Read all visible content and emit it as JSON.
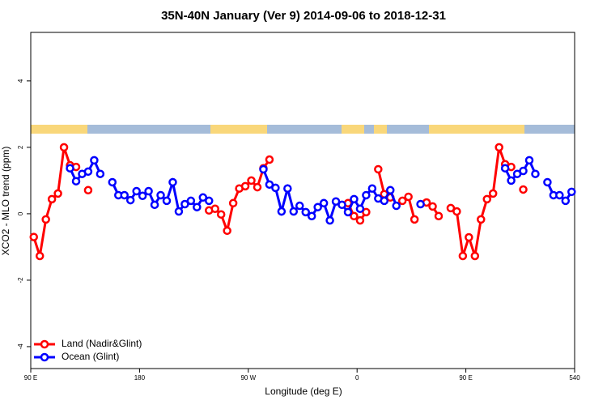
{
  "chart_data": {
    "type": "line",
    "title": "35N-40N January (Ver 9)   2014-09-06 to 2018-12-31",
    "xlabel": "Longitude (deg E)",
    "ylabel": "XCO2 - MLO trend (ppm)",
    "xlim": [
      90,
      540
    ],
    "ylim": [
      -4.66,
      5.46
    ],
    "xticks": [
      {
        "value": 90,
        "label": "90 E"
      },
      180,
      {
        "value": 270,
        "label": "90 W"
      },
      {
        "value": 360,
        "label": "0"
      },
      {
        "value": 450,
        "label": "90 E"
      },
      540
    ],
    "yticks": [
      -4,
      -2,
      0,
      2,
      4
    ],
    "legend": "bottomleft",
    "x": [
      92.5,
      97.5,
      102.5,
      107.5,
      112.5,
      117.5,
      122.5,
      127.5,
      132.5,
      137.5,
      142.5,
      147.5,
      152.5,
      157.5,
      162.5,
      167.5,
      172.5,
      177.5,
      182.5,
      187.5,
      192.5,
      197.5,
      202.5,
      207.5,
      212.5,
      217.5,
      222.5,
      227.5,
      232.5,
      237.5,
      242.5,
      247.5,
      252.5,
      257.5,
      262.5,
      267.5,
      272.5,
      277.5,
      282.5,
      287.5,
      292.5,
      297.5,
      302.5,
      307.5,
      312.5,
      317.5,
      322.5,
      327.5,
      332.5,
      337.5,
      342.5,
      347.5,
      352.5,
      357.5,
      362.5,
      367.5,
      372.5,
      377.5,
      382.5,
      387.5,
      392.5,
      397.5,
      402.5,
      407.5,
      412.5,
      417.5,
      422.5,
      427.5,
      432.5,
      437.5,
      442.5,
      447.5,
      452.5,
      457.5,
      462.5,
      467.5,
      472.5,
      477.5,
      482.5,
      487.5,
      492.5,
      497.5,
      502.5,
      507.5,
      512.5,
      517.5,
      522.5,
      527.5,
      532.5,
      537.5
    ],
    "series": [
      {
        "name": "Land (Nadir&Glint)",
        "color": "#ff0000",
        "values": [
          -0.7,
          -1.27,
          -0.17,
          0.44,
          0.61,
          2.0,
          1.46,
          1.41,
          null,
          0.71,
          null,
          null,
          null,
          null,
          null,
          null,
          null,
          null,
          null,
          null,
          null,
          null,
          null,
          null,
          null,
          null,
          null,
          null,
          null,
          0.1,
          0.15,
          -0.02,
          -0.51,
          0.32,
          0.76,
          0.83,
          1.0,
          0.8,
          1.37,
          1.63,
          null,
          null,
          null,
          null,
          null,
          null,
          null,
          null,
          null,
          null,
          null,
          null,
          0.32,
          -0.07,
          -0.2,
          0.05,
          null,
          1.34,
          0.59,
          0.49,
          null,
          0.39,
          0.51,
          -0.17,
          null,
          0.34,
          0.22,
          -0.07,
          null,
          0.17,
          0.07,
          -1.27,
          -0.71,
          -1.27,
          -0.17,
          0.44,
          0.61,
          2.0,
          1.49,
          1.41,
          null,
          0.73,
          null,
          null,
          null,
          null,
          null,
          null,
          null,
          null
        ]
      },
      {
        "name": "Ocean (Glint)",
        "color": "#0000ff",
        "values": [
          null,
          null,
          null,
          null,
          null,
          null,
          1.37,
          0.98,
          1.2,
          1.27,
          1.61,
          1.2,
          null,
          0.95,
          0.56,
          0.56,
          0.41,
          0.68,
          0.54,
          0.68,
          0.27,
          0.56,
          0.39,
          0.95,
          0.07,
          0.29,
          0.39,
          0.2,
          0.49,
          0.39,
          null,
          null,
          null,
          null,
          null,
          null,
          null,
          null,
          1.34,
          0.88,
          0.78,
          0.07,
          0.76,
          0.07,
          0.24,
          0.05,
          -0.07,
          0.2,
          0.32,
          -0.2,
          0.37,
          0.27,
          0.05,
          0.44,
          0.15,
          0.56,
          0.76,
          0.46,
          0.39,
          0.71,
          0.24,
          null,
          null,
          null,
          0.29,
          null,
          null,
          null,
          null,
          null,
          null,
          null,
          null,
          null,
          null,
          null,
          null,
          null,
          1.37,
          1.0,
          1.2,
          1.29,
          1.61,
          1.2,
          null,
          0.95,
          0.56,
          0.56,
          0.39,
          0.66
        ]
      }
    ]
  }
}
